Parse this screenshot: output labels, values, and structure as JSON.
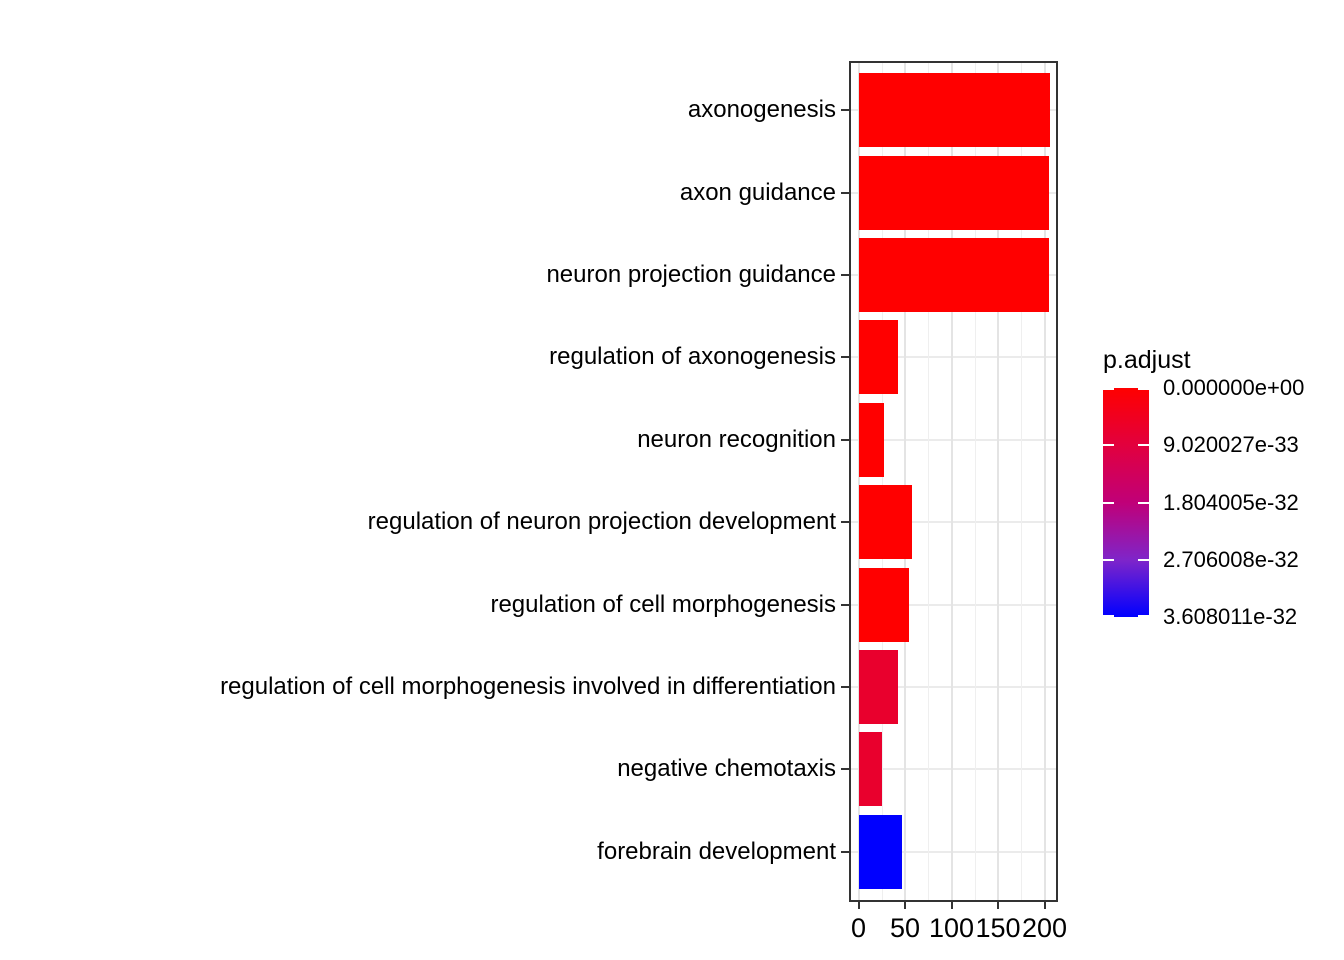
{
  "legend": {
    "title": "p.adjust",
    "labels": [
      "0.000000e+00",
      "9.020027e-33",
      "1.804005e-32",
      "2.706008e-32",
      "3.608011e-32"
    ],
    "gradient": [
      "#ff0000",
      "#e2003e",
      "#c00078",
      "#7f25c9",
      "#0000ff"
    ]
  },
  "chart_data": {
    "type": "bar",
    "orientation": "horizontal",
    "title": "",
    "xlabel": "",
    "ylabel": "",
    "categories": [
      "axonogenesis",
      "axon guidance",
      "neuron projection guidance",
      "regulation of axonogenesis",
      "neuron recognition",
      "regulation of neuron projection development",
      "regulation of cell morphogenesis",
      "regulation of cell morphogenesis involved in differentiation",
      "negative chemotaxis",
      "forebrain development"
    ],
    "values": [
      206,
      205,
      205,
      42,
      27,
      58,
      54,
      43,
      25,
      47
    ],
    "bar_colors": [
      "#ff0000",
      "#ff0000",
      "#ff0000",
      "#ff0000",
      "#ff0000",
      "#ff0000",
      "#ff0000",
      "#e9002d",
      "#e9002d",
      "#0000ff"
    ],
    "x_tick_values": [
      0,
      50,
      100,
      150,
      200
    ],
    "x_tick_labels": [
      "0",
      "50",
      "100",
      "150",
      "200"
    ],
    "x_minor_tick_values": [
      25,
      75,
      125,
      175
    ],
    "xlim": [
      0,
      215
    ],
    "grid": true,
    "legend_position": "right",
    "legend_title": "p.adjust",
    "color_scale": {
      "variable": "p.adjust",
      "low_color": "#ff0000",
      "high_color": "#0000ff",
      "tick_labels": [
        "0.000000e+00",
        "9.020027e-33",
        "1.804005e-32",
        "2.706008e-32",
        "3.608011e-32"
      ]
    }
  }
}
